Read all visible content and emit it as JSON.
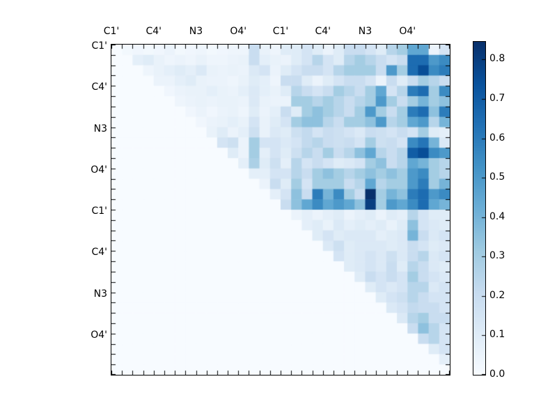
{
  "figure": {
    "background": "#ffffff",
    "frame_color": "#000000"
  },
  "chart_data": {
    "type": "heatmap",
    "title": "",
    "xlabel": "",
    "ylabel": "",
    "n_rows": 32,
    "n_cols": 32,
    "x_tick_labels": [
      "C1'",
      "C4'",
      "N3",
      "O4'",
      "C1'",
      "C4'",
      "N3",
      "O4'"
    ],
    "y_tick_labels": [
      "C1'",
      "C4'",
      "N3",
      "O4'",
      "C1'",
      "C4'",
      "N3",
      "O4'"
    ],
    "tick_label_cell_positions": [
      0,
      4,
      8,
      12,
      16,
      20,
      24,
      28
    ],
    "minor_ticks_every_cell": true,
    "vmin": 0.0,
    "vmax": 0.845,
    "colormap": "Blues",
    "colormap_stops": [
      [
        0.0,
        [
          247,
          251,
          255
        ]
      ],
      [
        0.125,
        [
          222,
          235,
          247
        ]
      ],
      [
        0.25,
        [
          198,
          219,
          239
        ]
      ],
      [
        0.375,
        [
          158,
          202,
          225
        ]
      ],
      [
        0.5,
        [
          107,
          174,
          214
        ]
      ],
      [
        0.625,
        [
          66,
          146,
          198
        ]
      ],
      [
        0.75,
        [
          33,
          113,
          181
        ]
      ],
      [
        0.875,
        [
          8,
          81,
          156
        ]
      ],
      [
        1.0,
        [
          8,
          48,
          107
        ]
      ]
    ],
    "colorbar_ticks": [
      "0.0",
      "0.1",
      "0.2",
      "0.3",
      "0.4",
      "0.5",
      "0.6",
      "0.7",
      "0.8"
    ],
    "matrix": [
      [
        0,
        0.02,
        0.03,
        0.02,
        0.03,
        0.05,
        0.02,
        0.03,
        0.04,
        0.02,
        0.03,
        0.04,
        0.04,
        0.2,
        0.06,
        0.04,
        0.1,
        0.1,
        0.15,
        0.1,
        0.05,
        0.1,
        0.2,
        0.2,
        0.15,
        0.1,
        0.25,
        0.3,
        0.45,
        0.45,
        0.05,
        0.15
      ],
      [
        0,
        0,
        0.08,
        0.1,
        0.06,
        0.04,
        0.05,
        0.04,
        0.06,
        0.04,
        0.04,
        0.05,
        0.06,
        0.2,
        0.08,
        0.06,
        0.05,
        0.1,
        0.15,
        0.25,
        0.15,
        0.1,
        0.25,
        0.3,
        0.25,
        0.2,
        0.15,
        0.2,
        0.65,
        0.65,
        0.5,
        0.55
      ],
      [
        0,
        0,
        0,
        0.04,
        0.06,
        0.08,
        0.1,
        0.08,
        0.12,
        0.06,
        0.05,
        0.06,
        0.05,
        0.12,
        0.15,
        0.05,
        0.1,
        0.15,
        0.2,
        0.2,
        0.15,
        0.25,
        0.3,
        0.3,
        0.3,
        0.2,
        0.5,
        0.3,
        0.65,
        0.75,
        0.55,
        0.6
      ],
      [
        0,
        0,
        0,
        0,
        0.05,
        0.05,
        0.08,
        0.1,
        0.06,
        0.05,
        0.05,
        0.04,
        0.06,
        0.1,
        0.08,
        0.04,
        0.2,
        0.2,
        0.1,
        0.05,
        0.1,
        0.15,
        0.2,
        0.2,
        0.15,
        0.05,
        0.2,
        0.1,
        0.2,
        0.3,
        0.25,
        0.2
      ],
      [
        0,
        0,
        0,
        0,
        0,
        0.03,
        0.05,
        0.06,
        0.06,
        0.08,
        0.06,
        0.05,
        0.08,
        0.12,
        0.08,
        0.06,
        0.1,
        0.25,
        0.2,
        0.15,
        0.2,
        0.3,
        0.25,
        0.2,
        0.3,
        0.45,
        0.15,
        0.25,
        0.6,
        0.65,
        0.3,
        0.55
      ],
      [
        0,
        0,
        0,
        0,
        0,
        0,
        0.04,
        0.05,
        0.06,
        0.05,
        0.06,
        0.06,
        0.05,
        0.12,
        0.06,
        0.05,
        0.05,
        0.3,
        0.3,
        0.25,
        0.3,
        0.25,
        0.2,
        0.25,
        0.3,
        0.5,
        0.3,
        0.2,
        0.3,
        0.4,
        0.3,
        0.35
      ],
      [
        0,
        0,
        0,
        0,
        0,
        0,
        0,
        0.03,
        0.05,
        0.03,
        0.05,
        0.06,
        0.04,
        0.1,
        0.05,
        0.08,
        0.2,
        0.1,
        0.3,
        0.35,
        0.3,
        0.25,
        0.2,
        0.3,
        0.5,
        0.3,
        0.2,
        0.3,
        0.6,
        0.65,
        0.35,
        0.6
      ],
      [
        0,
        0,
        0,
        0,
        0,
        0,
        0,
        0,
        0.03,
        0.05,
        0.06,
        0.08,
        0.06,
        0.15,
        0.06,
        0.1,
        0.15,
        0.3,
        0.35,
        0.35,
        0.25,
        0.2,
        0.3,
        0.3,
        0.35,
        0.5,
        0.25,
        0.3,
        0.45,
        0.5,
        0.25,
        0.4
      ],
      [
        0,
        0,
        0,
        0,
        0,
        0,
        0,
        0,
        0,
        0.06,
        0.1,
        0.05,
        0.08,
        0.18,
        0.06,
        0.12,
        0.1,
        0.18,
        0.22,
        0.15,
        0.2,
        0.18,
        0.15,
        0.12,
        0.2,
        0.18,
        0.15,
        0.2,
        0.15,
        0.3,
        0.1,
        0.08
      ],
      [
        0,
        0,
        0,
        0,
        0,
        0,
        0,
        0,
        0,
        0,
        0.15,
        0.18,
        0.05,
        0.3,
        0.15,
        0.15,
        0.12,
        0.15,
        0.22,
        0.25,
        0.2,
        0.18,
        0.2,
        0.15,
        0.3,
        0.18,
        0.2,
        0.15,
        0.55,
        0.62,
        0.4,
        0.12
      ],
      [
        0,
        0,
        0,
        0,
        0,
        0,
        0,
        0,
        0,
        0,
        0,
        0.1,
        0.05,
        0.3,
        0.08,
        0.15,
        0.1,
        0.18,
        0.25,
        0.2,
        0.3,
        0.2,
        0.25,
        0.35,
        0.45,
        0.25,
        0.2,
        0.25,
        0.7,
        0.75,
        0.55,
        0.5
      ],
      [
        0,
        0,
        0,
        0,
        0,
        0,
        0,
        0,
        0,
        0,
        0,
        0,
        0.08,
        0.28,
        0.1,
        0.18,
        0.08,
        0.25,
        0.15,
        0.2,
        0.15,
        0.1,
        0.12,
        0.15,
        0.3,
        0.35,
        0.2,
        0.25,
        0.45,
        0.4,
        0.3,
        0.25
      ],
      [
        0,
        0,
        0,
        0,
        0,
        0,
        0,
        0,
        0,
        0,
        0,
        0,
        0,
        0.08,
        0.08,
        0.15,
        0.15,
        0.25,
        0.2,
        0.3,
        0.35,
        0.3,
        0.25,
        0.3,
        0.35,
        0.3,
        0.35,
        0.3,
        0.5,
        0.55,
        0.3,
        0.25
      ],
      [
        0,
        0,
        0,
        0,
        0,
        0,
        0,
        0,
        0,
        0,
        0,
        0,
        0,
        0,
        0.05,
        0.2,
        0.1,
        0.3,
        0.15,
        0.3,
        0.3,
        0.3,
        0.2,
        0.25,
        0.45,
        0.25,
        0.3,
        0.3,
        0.5,
        0.6,
        0.3,
        0.4
      ],
      [
        0,
        0,
        0,
        0,
        0,
        0,
        0,
        0,
        0,
        0,
        0,
        0,
        0,
        0,
        0,
        0.08,
        0.15,
        0.35,
        0.2,
        0.6,
        0.4,
        0.55,
        0.3,
        0.2,
        0.85,
        0.3,
        0.4,
        0.35,
        0.6,
        0.65,
        0.5,
        0.55
      ],
      [
        0,
        0,
        0,
        0,
        0,
        0,
        0,
        0,
        0,
        0,
        0,
        0,
        0,
        0,
        0,
        0,
        0.2,
        0.35,
        0.45,
        0.55,
        0.45,
        0.5,
        0.45,
        0.35,
        0.8,
        0.3,
        0.5,
        0.45,
        0.55,
        0.65,
        0.45,
        0.4
      ],
      [
        0,
        0,
        0,
        0,
        0,
        0,
        0,
        0,
        0,
        0,
        0,
        0,
        0,
        0,
        0,
        0,
        0,
        0.05,
        0.08,
        0.05,
        0.08,
        0.1,
        0.05,
        0.08,
        0.1,
        0.05,
        0.1,
        0.08,
        0.25,
        0.15,
        0.1,
        0.1
      ],
      [
        0,
        0,
        0,
        0,
        0,
        0,
        0,
        0,
        0,
        0,
        0,
        0,
        0,
        0,
        0,
        0,
        0,
        0,
        0.08,
        0.1,
        0.06,
        0.12,
        0.08,
        0.1,
        0.08,
        0.1,
        0.06,
        0.1,
        0.35,
        0.15,
        0.12,
        0.1
      ],
      [
        0,
        0,
        0,
        0,
        0,
        0,
        0,
        0,
        0,
        0,
        0,
        0,
        0,
        0,
        0,
        0,
        0,
        0,
        0,
        0.1,
        0.15,
        0.1,
        0.12,
        0.12,
        0.12,
        0.08,
        0.1,
        0.12,
        0.4,
        0.2,
        0.12,
        0.15
      ],
      [
        0,
        0,
        0,
        0,
        0,
        0,
        0,
        0,
        0,
        0,
        0,
        0,
        0,
        0,
        0,
        0,
        0,
        0,
        0,
        0,
        0.12,
        0.18,
        0.1,
        0.12,
        0.12,
        0.12,
        0.1,
        0.12,
        0.2,
        0.15,
        0.1,
        0.12
      ],
      [
        0,
        0,
        0,
        0,
        0,
        0,
        0,
        0,
        0,
        0,
        0,
        0,
        0,
        0,
        0,
        0,
        0,
        0,
        0,
        0,
        0,
        0.15,
        0.1,
        0.12,
        0.15,
        0.12,
        0.18,
        0.12,
        0.2,
        0.25,
        0.12,
        0.15
      ],
      [
        0,
        0,
        0,
        0,
        0,
        0,
        0,
        0,
        0,
        0,
        0,
        0,
        0,
        0,
        0,
        0,
        0,
        0,
        0,
        0,
        0,
        0,
        0.1,
        0.12,
        0.15,
        0.12,
        0.2,
        0.1,
        0.25,
        0.2,
        0.12,
        0.1
      ],
      [
        0,
        0,
        0,
        0,
        0,
        0,
        0,
        0,
        0,
        0,
        0,
        0,
        0,
        0,
        0,
        0,
        0,
        0,
        0,
        0,
        0,
        0,
        0,
        0.1,
        0.2,
        0.15,
        0.2,
        0.15,
        0.3,
        0.2,
        0.15,
        0.12
      ],
      [
        0,
        0,
        0,
        0,
        0,
        0,
        0,
        0,
        0,
        0,
        0,
        0,
        0,
        0,
        0,
        0,
        0,
        0,
        0,
        0,
        0,
        0,
        0,
        0,
        0.1,
        0.15,
        0.12,
        0.15,
        0.25,
        0.25,
        0.12,
        0.15
      ],
      [
        0,
        0,
        0,
        0,
        0,
        0,
        0,
        0,
        0,
        0,
        0,
        0,
        0,
        0,
        0,
        0,
        0,
        0,
        0,
        0,
        0,
        0,
        0,
        0,
        0,
        0.1,
        0.15,
        0.18,
        0.25,
        0.2,
        0.15,
        0.15
      ],
      [
        0,
        0,
        0,
        0,
        0,
        0,
        0,
        0,
        0,
        0,
        0,
        0,
        0,
        0,
        0,
        0,
        0,
        0,
        0,
        0,
        0,
        0,
        0,
        0,
        0,
        0,
        0.12,
        0.15,
        0.22,
        0.2,
        0.2,
        0.15
      ],
      [
        0,
        0,
        0,
        0,
        0,
        0,
        0,
        0,
        0,
        0,
        0,
        0,
        0,
        0,
        0,
        0,
        0,
        0,
        0,
        0,
        0,
        0,
        0,
        0,
        0,
        0,
        0,
        0.12,
        0.25,
        0.3,
        0.2,
        0.2
      ],
      [
        0,
        0,
        0,
        0,
        0,
        0,
        0,
        0,
        0,
        0,
        0,
        0,
        0,
        0,
        0,
        0,
        0,
        0,
        0,
        0,
        0,
        0,
        0,
        0,
        0,
        0,
        0,
        0,
        0.2,
        0.35,
        0.25,
        0.15
      ],
      [
        0,
        0,
        0,
        0,
        0,
        0,
        0,
        0,
        0,
        0,
        0,
        0,
        0,
        0,
        0,
        0,
        0,
        0,
        0,
        0,
        0,
        0,
        0,
        0,
        0,
        0,
        0,
        0,
        0,
        0.2,
        0.25,
        0.15
      ],
      [
        0,
        0,
        0,
        0,
        0,
        0,
        0,
        0,
        0,
        0,
        0,
        0,
        0,
        0,
        0,
        0,
        0,
        0,
        0,
        0,
        0,
        0,
        0,
        0,
        0,
        0,
        0,
        0,
        0,
        0,
        0.1,
        0.15
      ],
      [
        0,
        0,
        0,
        0,
        0,
        0,
        0,
        0,
        0,
        0,
        0,
        0,
        0,
        0,
        0,
        0,
        0,
        0,
        0,
        0,
        0,
        0,
        0,
        0,
        0,
        0,
        0,
        0,
        0,
        0,
        0,
        0.08
      ],
      [
        0,
        0,
        0,
        0,
        0,
        0,
        0,
        0,
        0,
        0,
        0,
        0,
        0,
        0,
        0,
        0,
        0,
        0,
        0,
        0,
        0,
        0,
        0,
        0,
        0,
        0,
        0,
        0,
        0,
        0,
        0,
        0
      ]
    ]
  }
}
